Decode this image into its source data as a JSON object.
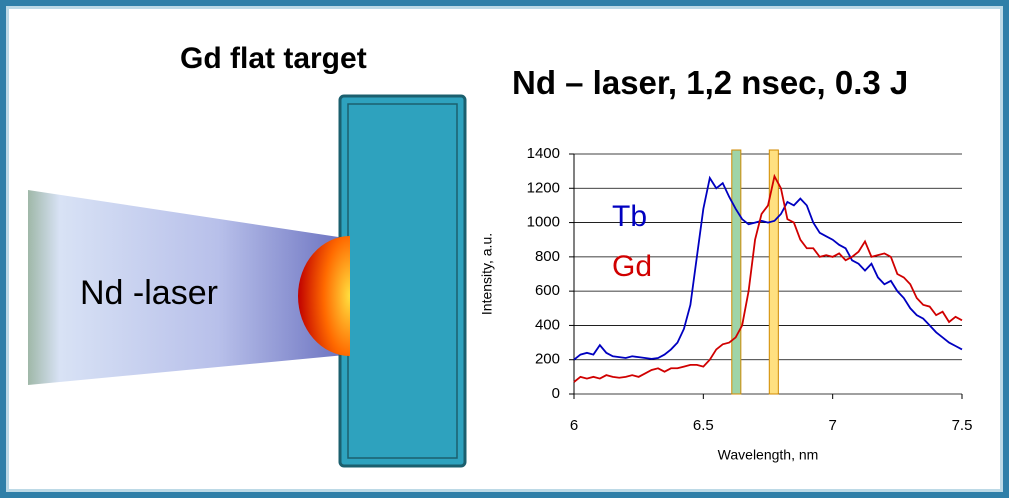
{
  "slide": {
    "target_label": "Gd flat target",
    "laser_label": "Nd -laser"
  },
  "chart_data": {
    "type": "line",
    "title": "Nd – laser,  1,2 nsec, 0.3 J",
    "x_label": "Wavelength, nm",
    "y_label": "Intensity, a.u.",
    "x": [
      6.0,
      6.025,
      6.05,
      6.075,
      6.1,
      6.125,
      6.15,
      6.175,
      6.2,
      6.225,
      6.25,
      6.275,
      6.3,
      6.325,
      6.35,
      6.375,
      6.4,
      6.425,
      6.45,
      6.475,
      6.5,
      6.525,
      6.55,
      6.575,
      6.6,
      6.625,
      6.65,
      6.675,
      6.7,
      6.725,
      6.75,
      6.775,
      6.8,
      6.825,
      6.85,
      6.875,
      6.9,
      6.925,
      6.95,
      6.975,
      7.0,
      7.025,
      7.05,
      7.075,
      7.1,
      7.125,
      7.15,
      7.175,
      7.2,
      7.225,
      7.25,
      7.275,
      7.3,
      7.325,
      7.35,
      7.375,
      7.4,
      7.425,
      7.45,
      7.475,
      7.5
    ],
    "series": [
      {
        "name": "Tb",
        "color": "#0000c0",
        "values": [
          200,
          230,
          240,
          230,
          285,
          240,
          220,
          215,
          210,
          220,
          215,
          210,
          205,
          210,
          230,
          260,
          300,
          380,
          520,
          800,
          1080,
          1260,
          1200,
          1230,
          1150,
          1080,
          1020,
          990,
          1000,
          1010,
          1000,
          1010,
          1050,
          1120,
          1100,
          1140,
          1100,
          1000,
          940,
          920,
          900,
          870,
          850,
          780,
          760,
          720,
          760,
          680,
          640,
          660,
          600,
          560,
          500,
          460,
          440,
          400,
          360,
          330,
          300,
          280,
          260
        ]
      },
      {
        "name": "Gd",
        "color": "#d00000",
        "values": [
          70,
          100,
          90,
          100,
          90,
          110,
          100,
          95,
          100,
          110,
          100,
          120,
          140,
          150,
          130,
          150,
          150,
          160,
          170,
          170,
          160,
          200,
          260,
          290,
          300,
          330,
          400,
          600,
          900,
          1050,
          1100,
          1270,
          1200,
          1020,
          1000,
          900,
          850,
          850,
          800,
          810,
          800,
          820,
          780,
          800,
          830,
          890,
          800,
          810,
          820,
          800,
          700,
          680,
          640,
          560,
          520,
          510,
          460,
          480,
          420,
          450,
          430
        ]
      }
    ],
    "bands": [
      {
        "xlim": [
          6.61,
          6.645
        ],
        "color": "#9fd4a8"
      },
      {
        "xlim": [
          6.755,
          6.79
        ],
        "color": "#ffe080"
      }
    ],
    "xlim": [
      6,
      7.5
    ],
    "xticks": [
      6,
      6.5,
      7,
      7.5
    ],
    "ylim": [
      0,
      1400
    ],
    "yticks": [
      0,
      200,
      400,
      600,
      800,
      1000,
      1200,
      1400
    ],
    "grid": true
  }
}
